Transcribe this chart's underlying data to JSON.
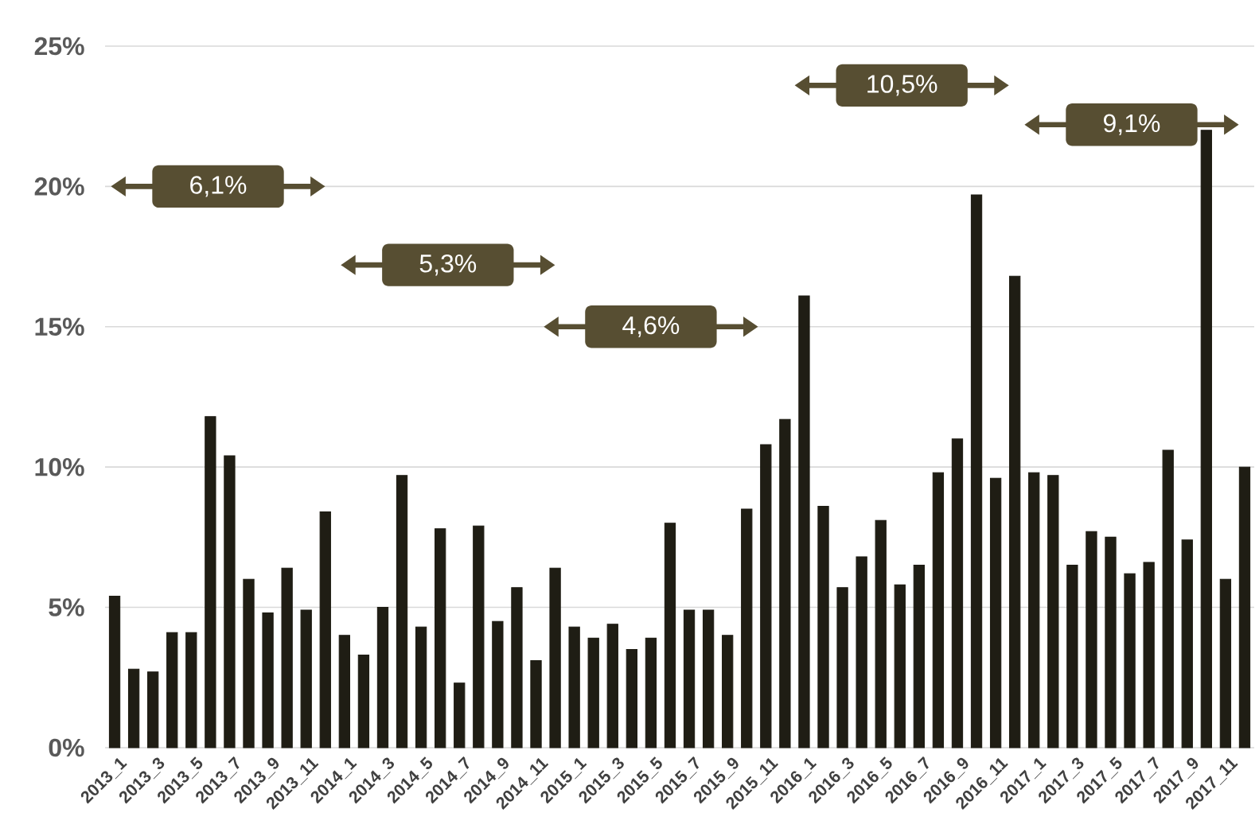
{
  "chart_data": {
    "type": "bar",
    "categories": [
      "2013_1",
      null,
      "2013_3",
      null,
      "2013_5",
      null,
      "2013_7",
      null,
      "2013_9",
      null,
      "2013_11",
      null,
      "2014_1",
      null,
      "2014_3",
      null,
      "2014_5",
      null,
      "2014_7",
      null,
      "2014_9",
      null,
      "2014_11",
      null,
      "2015_1",
      null,
      "2015_3",
      null,
      "2015_5",
      null,
      "2015_7",
      null,
      "2015_9",
      null,
      "2015_11",
      null,
      "2016_1",
      null,
      "2016_3",
      null,
      "2016_5",
      null,
      "2016_7",
      null,
      "2016_9",
      null,
      "2016_11",
      null,
      "2017_1",
      null,
      "2017_3",
      null,
      "2017_5",
      null,
      "2017_7",
      null,
      "2017_9",
      null,
      "2017_11",
      null
    ],
    "values": [
      5.4,
      2.8,
      2.7,
      4.1,
      4.1,
      11.8,
      10.4,
      6.0,
      4.8,
      6.4,
      4.9,
      8.4,
      4.0,
      3.3,
      5.0,
      9.7,
      4.3,
      7.8,
      2.3,
      7.9,
      4.5,
      5.7,
      3.1,
      6.4,
      4.3,
      3.9,
      4.4,
      3.5,
      3.9,
      8.0,
      4.9,
      4.9,
      4.0,
      8.5,
      10.8,
      11.7,
      16.1,
      8.6,
      5.7,
      6.8,
      8.1,
      5.8,
      6.5,
      9.8,
      11.0,
      19.7,
      9.6,
      16.8,
      9.8,
      9.7,
      6.5,
      7.7,
      7.5,
      6.2,
      6.6,
      10.6,
      7.4,
      22.0,
      6.0,
      10.0
    ],
    "color": "#1f1d14",
    "ylim": [
      0,
      25
    ],
    "yticks": [
      {
        "value": 0,
        "label": "0%"
      },
      {
        "value": 5,
        "label": "5%"
      },
      {
        "value": 10,
        "label": "10%"
      },
      {
        "value": 15,
        "label": "15%"
      },
      {
        "value": 20,
        "label": "20%"
      },
      {
        "value": 25,
        "label": "25%"
      }
    ],
    "grid": "y",
    "annotations": [
      "6,1%",
      "5,3%",
      "4,6%",
      "10,5%",
      "9,1%"
    ]
  }
}
